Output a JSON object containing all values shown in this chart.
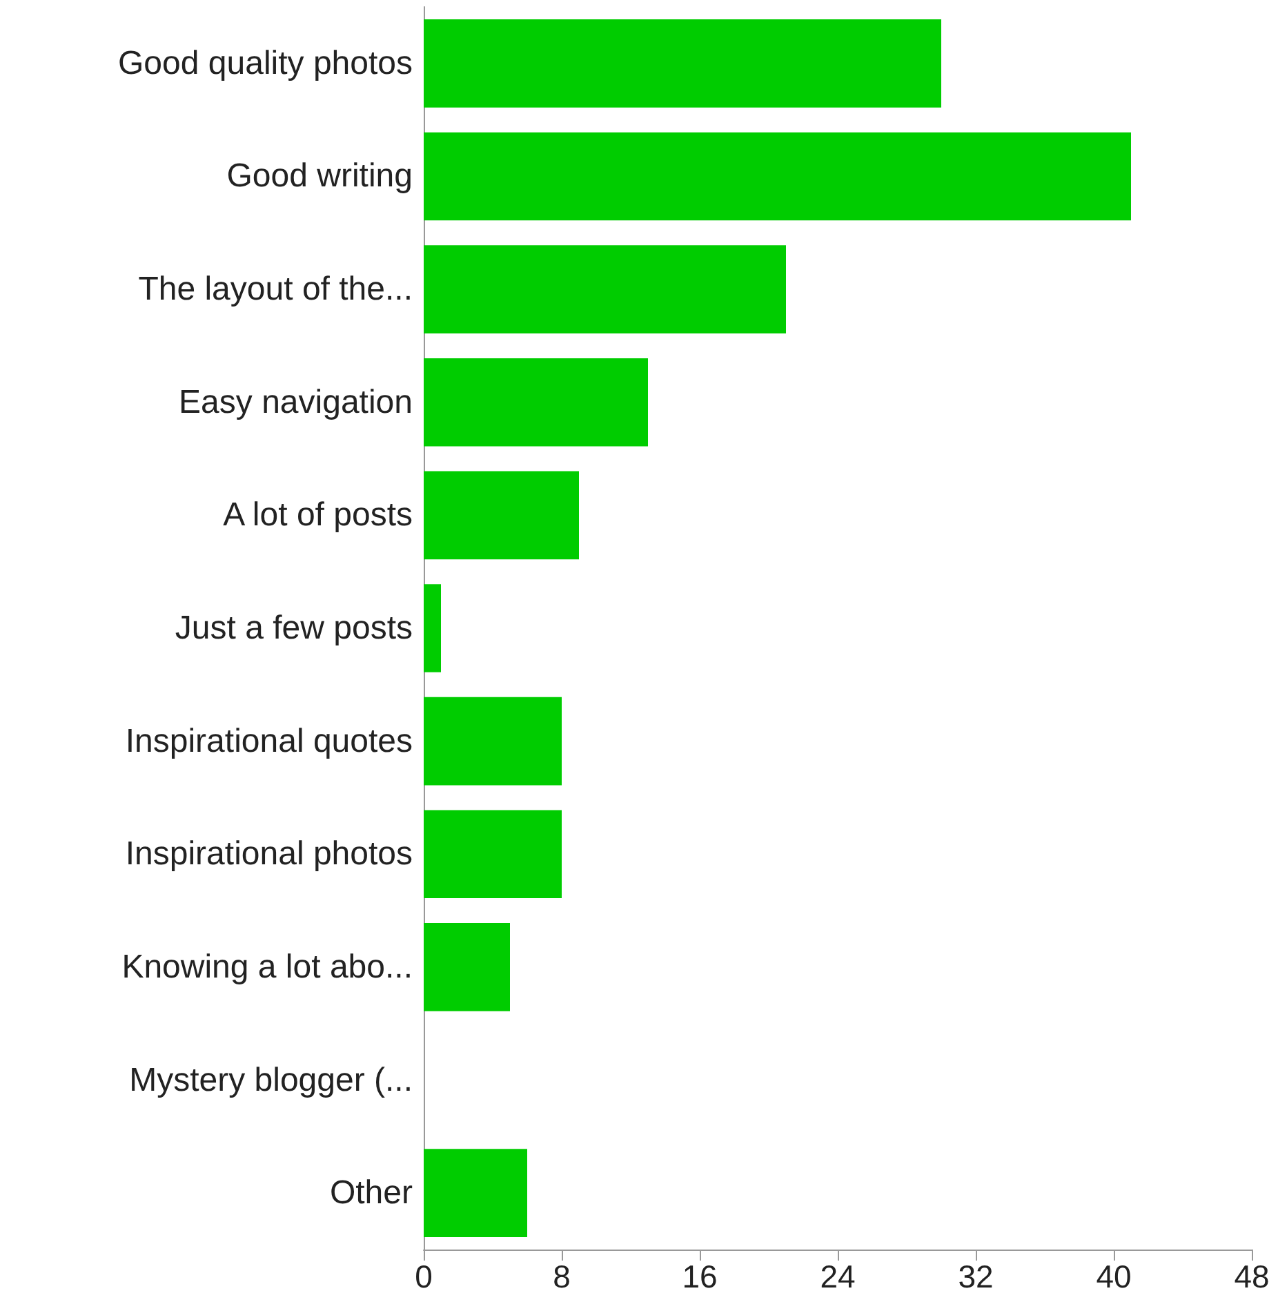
{
  "chart_data": {
    "type": "bar",
    "orientation": "horizontal",
    "categories": [
      "Good quality photos",
      "Good writing",
      "The layout of the...",
      "Easy navigation",
      "A lot of posts",
      "Just a few posts",
      "Inspirational quotes",
      "Inspirational photos",
      "Knowing a lot abo...",
      "Mystery blogger (...",
      "Other"
    ],
    "values": [
      30,
      41,
      21,
      13,
      9,
      1,
      8,
      8,
      5,
      0,
      6
    ],
    "color": "#00cc00",
    "xlim": [
      0,
      48
    ],
    "xticks": [
      0,
      8,
      16,
      24,
      32,
      40,
      48
    ],
    "grid": false
  }
}
